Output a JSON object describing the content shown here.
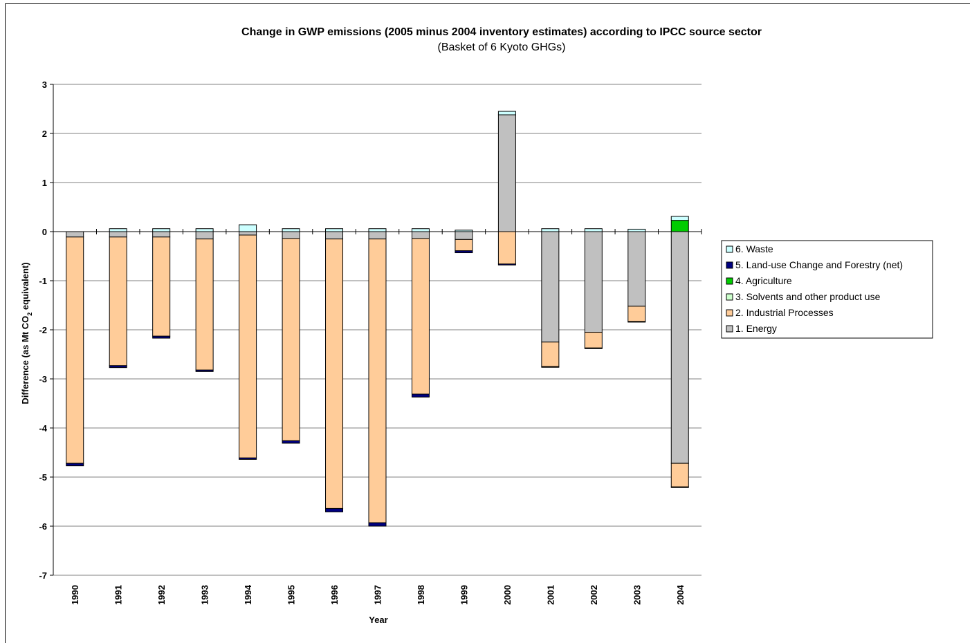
{
  "chart_data": {
    "type": "bar",
    "stacked": true,
    "title": "Change in GWP emissions (2005 minus 2004 inventory estimates) according to IPCC source sector",
    "subtitle": "(Basket of 6 Kyoto GHGs)",
    "xlabel": "Year",
    "ylabel_prefix": "Difference (as Mt CO",
    "ylabel_sub": "2",
    "ylabel_suffix": " equivalent)",
    "ylim": [
      -7,
      3
    ],
    "yticks": [
      3,
      2,
      1,
      0,
      -1,
      -2,
      -3,
      -4,
      -5,
      -6,
      -7
    ],
    "grid": true,
    "legend_position": "right",
    "categories": [
      "1990",
      "1991",
      "1992",
      "1993",
      "1994",
      "1995",
      "1996",
      "1997",
      "1998",
      "1999",
      "2000",
      "2001",
      "2002",
      "2003",
      "2004"
    ],
    "series": [
      {
        "name": "1. Energy",
        "color": "#c0c0c0",
        "values": [
          -0.11,
          -0.11,
          -0.11,
          -0.15,
          -0.07,
          -0.14,
          -0.15,
          -0.15,
          -0.14,
          -0.16,
          2.38,
          -2.25,
          -2.05,
          -1.52,
          -4.72
        ]
      },
      {
        "name": "2. Industrial Processes",
        "color": "#ffcc99",
        "values": [
          -4.61,
          -2.62,
          -2.02,
          -2.67,
          -4.54,
          -4.12,
          -5.49,
          -5.78,
          -3.17,
          -0.23,
          -0.66,
          -0.5,
          -0.32,
          -0.31,
          -0.48
        ]
      },
      {
        "name": "3. Solvents and other product use",
        "color": "#ccffcc",
        "values": [
          0,
          0,
          0,
          0,
          0,
          0,
          0,
          0,
          0,
          0,
          0,
          0,
          0,
          0,
          0
        ]
      },
      {
        "name": "4. Agriculture",
        "color": "#00cc00",
        "values": [
          0,
          0,
          0,
          0,
          0,
          0,
          0,
          0,
          0,
          0,
          0,
          0,
          0,
          0,
          0.23
        ]
      },
      {
        "name": "5. Land-use Change and Forestry (net)",
        "color": "#000080",
        "values": [
          -0.05,
          -0.04,
          -0.04,
          -0.03,
          -0.03,
          -0.05,
          -0.07,
          -0.07,
          -0.06,
          -0.04,
          -0.02,
          -0.01,
          -0.01,
          -0.01,
          -0.01
        ]
      },
      {
        "name": "6. Waste",
        "color": "#ccffff",
        "values": [
          0,
          0.06,
          0.06,
          0.06,
          0.14,
          0.06,
          0.06,
          0.06,
          0.06,
          0.03,
          0.07,
          0.06,
          0.06,
          0.05,
          0.08
        ]
      }
    ],
    "legend_order": [
      5,
      4,
      3,
      2,
      1,
      0
    ]
  }
}
